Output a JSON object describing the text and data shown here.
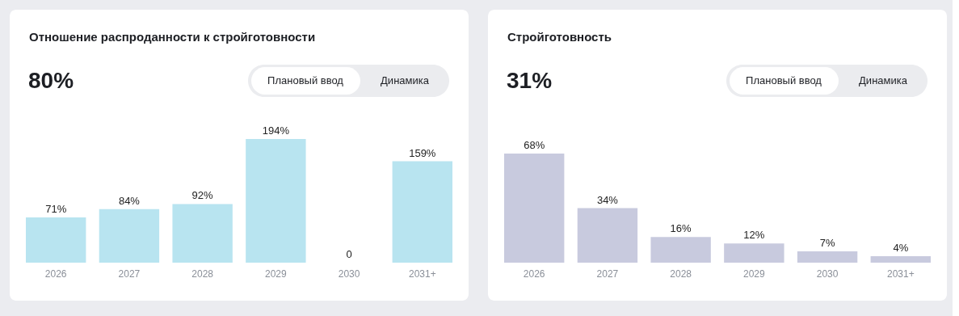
{
  "chart_data": [
    {
      "type": "bar",
      "title": "Отношение распроданности к стройготовности",
      "annotations": [
        "80%",
        "Плановый ввод",
        "Динамика"
      ],
      "categories": [
        "2026",
        "2027",
        "2028",
        "2029",
        "2030",
        "2031+"
      ],
      "values": [
        71,
        84,
        92,
        194,
        0,
        159
      ],
      "value_labels": [
        "71%",
        "84%",
        "92%",
        "194%",
        "0",
        "159%"
      ],
      "color": "#b8e4f0"
    },
    {
      "type": "bar",
      "title": "Стройготовность",
      "annotations": [
        "31%",
        "Плановый ввод",
        "Динамика"
      ],
      "categories": [
        "2026",
        "2027",
        "2028",
        "2029",
        "2030",
        "2031+"
      ],
      "values": [
        68,
        34,
        16,
        12,
        7,
        4
      ],
      "value_labels": [
        "68%",
        "34%",
        "16%",
        "12%",
        "7%",
        "4%"
      ],
      "color": "#c8cade"
    }
  ]
}
